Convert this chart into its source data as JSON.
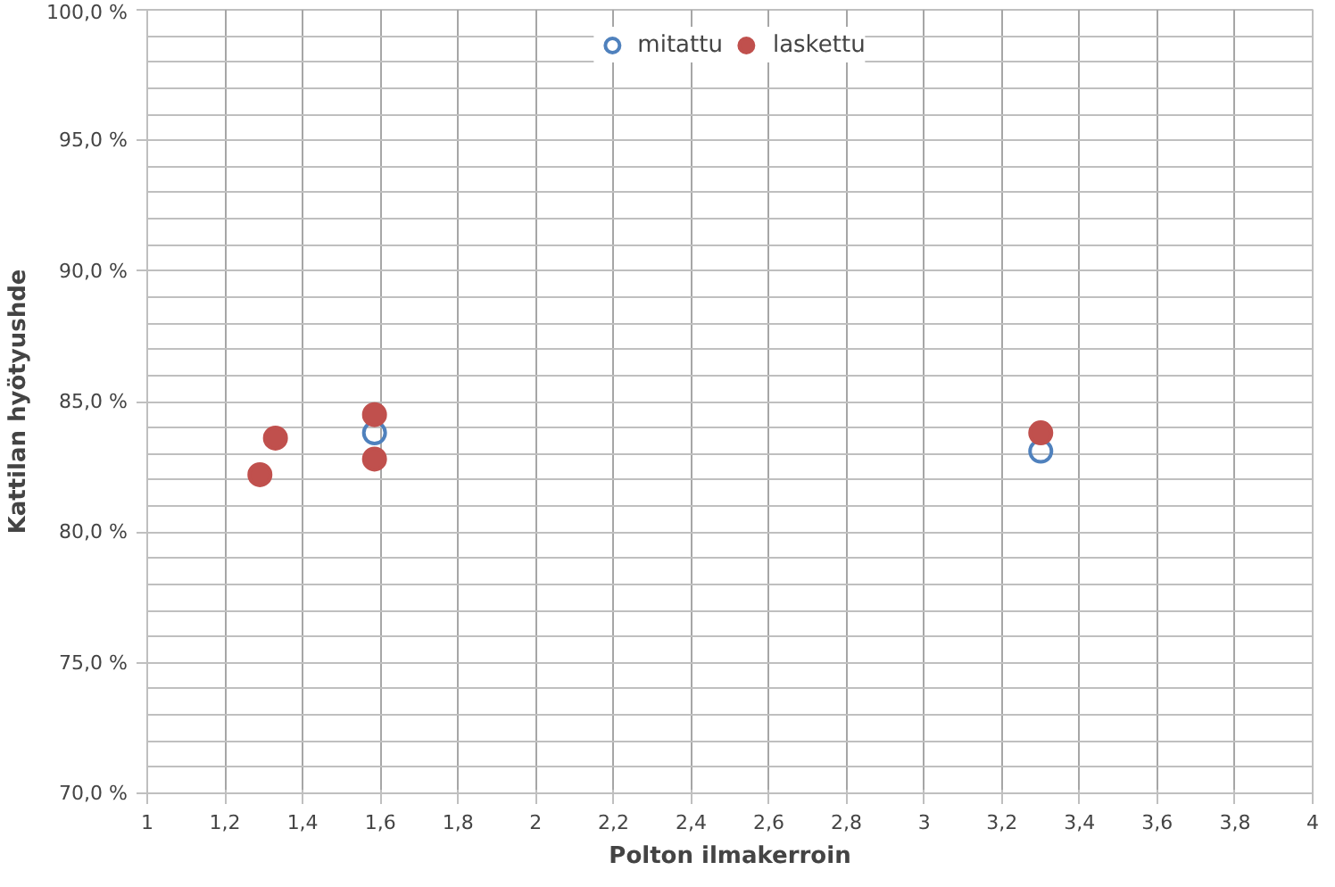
{
  "chart_data": {
    "type": "scatter",
    "xlabel": "Polton ilmakerroin",
    "ylabel": "Kattilan hyötyushde",
    "series": [
      {
        "name": "mitattu",
        "color": "#4f81bd",
        "marker": "circle_open",
        "x": [
          1.585,
          3.3
        ],
        "values": [
          83.8,
          83.1
        ]
      },
      {
        "name": "laskettu",
        "color": "#c0504d",
        "marker": "circle",
        "x": [
          1.29,
          1.33,
          1.585,
          1.585,
          3.3
        ],
        "values": [
          82.2,
          83.6,
          84.5,
          82.8,
          83.8
        ]
      }
    ],
    "xlim": [
      1,
      4
    ],
    "ylim": [
      70,
      100
    ],
    "xticks": [
      1,
      {
        "value": 1.2,
        "label": "1,2"
      },
      {
        "value": 1.4,
        "label": "1,4"
      },
      {
        "value": 1.6,
        "label": "1,6"
      },
      {
        "value": 1.8,
        "label": "1,8"
      },
      2,
      {
        "value": 2.2,
        "label": "2,2"
      },
      {
        "value": 2.4,
        "label": "2,4"
      },
      {
        "value": 2.6,
        "label": "2,6"
      },
      {
        "value": 2.8,
        "label": "2,8"
      },
      3,
      {
        "value": 3.2,
        "label": "3,2"
      },
      {
        "value": 3.4,
        "label": "3,4"
      },
      {
        "value": 3.6,
        "label": "3,6"
      },
      {
        "value": 3.8,
        "label": "3,8"
      },
      4
    ],
    "yticks": [
      {
        "value": 70,
        "label": "70,0 %"
      },
      {
        "value": 71,
        "label": null
      },
      {
        "value": 72,
        "label": null
      },
      {
        "value": 73,
        "label": null
      },
      {
        "value": 74,
        "label": null
      },
      {
        "value": 75,
        "label": "75,0 %"
      },
      {
        "value": 76,
        "label": null
      },
      {
        "value": 77,
        "label": null
      },
      {
        "value": 78,
        "label": null
      },
      {
        "value": 79,
        "label": null
      },
      {
        "value": 80,
        "label": "80,0 %"
      },
      {
        "value": 81,
        "label": null
      },
      {
        "value": 82,
        "label": null
      },
      {
        "value": 83,
        "label": null
      },
      {
        "value": 84,
        "label": null
      },
      {
        "value": 85,
        "label": "85,0 %"
      },
      {
        "value": 86,
        "label": null
      },
      {
        "value": 87,
        "label": null
      },
      {
        "value": 88,
        "label": null
      },
      {
        "value": 89,
        "label": null
      },
      {
        "value": 90,
        "label": "90,0 %"
      },
      {
        "value": 91,
        "label": null
      },
      {
        "value": 92,
        "label": null
      },
      {
        "value": 93,
        "label": null
      },
      {
        "value": 94,
        "label": null
      },
      {
        "value": 95,
        "label": "95,0 %"
      },
      {
        "value": 96,
        "label": null
      },
      {
        "value": 97,
        "label": null
      },
      {
        "value": 98,
        "label": null
      },
      {
        "value": 99,
        "label": null
      },
      {
        "value": 100,
        "label": "100,0 %"
      }
    ],
    "grid": true,
    "legend": "top"
  }
}
